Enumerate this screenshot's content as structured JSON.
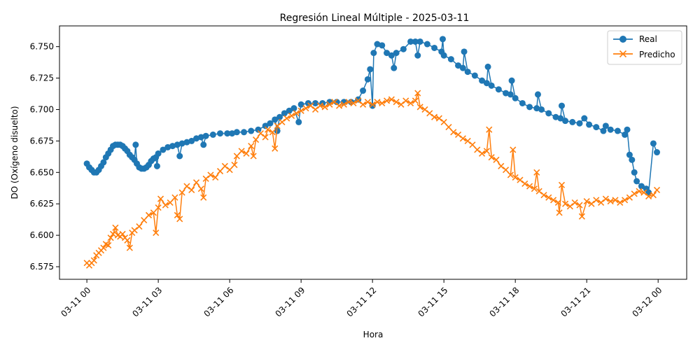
{
  "chart_data": {
    "type": "line",
    "title": "Regresión Lineal Múltiple - 2025-03-11",
    "xlabel": "Hora",
    "ylabel": "DO (Oxígeno disuelto)",
    "x_ticks": [
      {
        "hour": 0,
        "label": "03-11 00"
      },
      {
        "hour": 3,
        "label": "03-11 03"
      },
      {
        "hour": 6,
        "label": "03-11 06"
      },
      {
        "hour": 9,
        "label": "03-11 09"
      },
      {
        "hour": 12,
        "label": "03-11 12"
      },
      {
        "hour": 15,
        "label": "03-11 15"
      },
      {
        "hour": 18,
        "label": "03-11 18"
      },
      {
        "hour": 21,
        "label": "03-11 21"
      },
      {
        "hour": 24,
        "label": "03-12 00"
      }
    ],
    "y_ticks": [
      6.575,
      6.6,
      6.625,
      6.65,
      6.675,
      6.7,
      6.725,
      6.75
    ],
    "y_tick_labels": [
      "6.575",
      "6.600",
      "6.625",
      "6.650",
      "6.675",
      "6.700",
      "6.725",
      "6.750"
    ],
    "xlim_hours": [
      -1.15,
      25.2
    ],
    "ylim": [
      6.565,
      6.7665
    ],
    "grid": false,
    "legend_position": "top-right",
    "series": [
      {
        "name": "Real",
        "color": "#1f77b4",
        "marker": "circle",
        "points": [
          [
            0.0,
            6.657
          ],
          [
            0.1,
            6.654
          ],
          [
            0.2,
            6.652
          ],
          [
            0.3,
            6.65
          ],
          [
            0.4,
            6.65
          ],
          [
            0.5,
            6.652
          ],
          [
            0.6,
            6.655
          ],
          [
            0.7,
            6.658
          ],
          [
            0.8,
            6.662
          ],
          [
            0.9,
            6.665
          ],
          [
            1.0,
            6.668
          ],
          [
            1.1,
            6.671
          ],
          [
            1.2,
            6.672
          ],
          [
            1.3,
            6.672
          ],
          [
            1.4,
            6.672
          ],
          [
            1.5,
            6.671
          ],
          [
            1.6,
            6.669
          ],
          [
            1.7,
            6.667
          ],
          [
            1.8,
            6.664
          ],
          [
            1.9,
            6.662
          ],
          [
            2.0,
            6.66
          ],
          [
            2.05,
            6.672
          ],
          [
            2.1,
            6.657
          ],
          [
            2.2,
            6.654
          ],
          [
            2.3,
            6.653
          ],
          [
            2.4,
            6.653
          ],
          [
            2.5,
            6.654
          ],
          [
            2.6,
            6.656
          ],
          [
            2.7,
            6.659
          ],
          [
            2.8,
            6.661
          ],
          [
            2.9,
            6.662
          ],
          [
            2.95,
            6.655
          ],
          [
            3.0,
            6.665
          ],
          [
            3.2,
            6.668
          ],
          [
            3.4,
            6.67
          ],
          [
            3.6,
            6.671
          ],
          [
            3.8,
            6.672
          ],
          [
            3.9,
            6.663
          ],
          [
            4.0,
            6.673
          ],
          [
            4.2,
            6.674
          ],
          [
            4.4,
            6.675
          ],
          [
            4.6,
            6.677
          ],
          [
            4.8,
            6.678
          ],
          [
            4.9,
            6.672
          ],
          [
            5.0,
            6.679
          ],
          [
            5.3,
            6.68
          ],
          [
            5.6,
            6.681
          ],
          [
            5.9,
            6.681
          ],
          [
            6.1,
            6.681
          ],
          [
            6.3,
            6.682
          ],
          [
            6.6,
            6.682
          ],
          [
            6.9,
            6.683
          ],
          [
            7.2,
            6.684
          ],
          [
            7.5,
            6.687
          ],
          [
            7.7,
            6.689
          ],
          [
            7.9,
            6.692
          ],
          [
            8.0,
            6.683
          ],
          [
            8.1,
            6.694
          ],
          [
            8.3,
            6.697
          ],
          [
            8.5,
            6.699
          ],
          [
            8.7,
            6.701
          ],
          [
            8.9,
            6.69
          ],
          [
            9.0,
            6.704
          ],
          [
            9.3,
            6.705
          ],
          [
            9.6,
            6.705
          ],
          [
            9.9,
            6.705
          ],
          [
            10.2,
            6.706
          ],
          [
            10.5,
            6.706
          ],
          [
            10.8,
            6.706
          ],
          [
            11.1,
            6.706
          ],
          [
            11.4,
            6.708
          ],
          [
            11.6,
            6.715
          ],
          [
            11.8,
            6.724
          ],
          [
            11.9,
            6.732
          ],
          [
            12.0,
            6.703
          ],
          [
            12.05,
            6.745
          ],
          [
            12.2,
            6.752
          ],
          [
            12.4,
            6.751
          ],
          [
            12.6,
            6.745
          ],
          [
            12.8,
            6.743
          ],
          [
            12.9,
            6.733
          ],
          [
            13.0,
            6.745
          ],
          [
            13.3,
            6.748
          ],
          [
            13.6,
            6.754
          ],
          [
            13.8,
            6.754
          ],
          [
            13.9,
            6.743
          ],
          [
            14.0,
            6.754
          ],
          [
            14.3,
            6.752
          ],
          [
            14.6,
            6.749
          ],
          [
            14.9,
            6.746
          ],
          [
            14.95,
            6.756
          ],
          [
            15.0,
            6.743
          ],
          [
            15.3,
            6.74
          ],
          [
            15.6,
            6.735
          ],
          [
            15.8,
            6.733
          ],
          [
            15.85,
            6.746
          ],
          [
            16.0,
            6.73
          ],
          [
            16.3,
            6.727
          ],
          [
            16.6,
            6.723
          ],
          [
            16.8,
            6.721
          ],
          [
            16.85,
            6.734
          ],
          [
            17.0,
            6.719
          ],
          [
            17.3,
            6.716
          ],
          [
            17.6,
            6.713
          ],
          [
            17.8,
            6.712
          ],
          [
            17.85,
            6.723
          ],
          [
            18.0,
            6.709
          ],
          [
            18.3,
            6.705
          ],
          [
            18.6,
            6.702
          ],
          [
            18.9,
            6.701
          ],
          [
            18.95,
            6.712
          ],
          [
            19.1,
            6.7
          ],
          [
            19.4,
            6.697
          ],
          [
            19.7,
            6.694
          ],
          [
            19.9,
            6.693
          ],
          [
            19.95,
            6.703
          ],
          [
            20.1,
            6.691
          ],
          [
            20.4,
            6.69
          ],
          [
            20.7,
            6.689
          ],
          [
            20.9,
            6.693
          ],
          [
            21.1,
            6.688
          ],
          [
            21.4,
            6.686
          ],
          [
            21.7,
            6.683
          ],
          [
            21.8,
            6.687
          ],
          [
            22.0,
            6.684
          ],
          [
            22.3,
            6.683
          ],
          [
            22.6,
            6.68
          ],
          [
            22.7,
            6.684
          ],
          [
            22.8,
            6.664
          ],
          [
            22.9,
            6.66
          ],
          [
            23.0,
            6.65
          ],
          [
            23.1,
            6.643
          ],
          [
            23.3,
            6.639
          ],
          [
            23.5,
            6.637
          ],
          [
            23.6,
            6.634
          ],
          [
            23.8,
            6.673
          ],
          [
            23.95,
            6.666
          ]
        ]
      },
      {
        "name": "Predicho",
        "color": "#ff7f0e",
        "marker": "x",
        "points": [
          [
            0.0,
            6.578
          ],
          [
            0.1,
            6.576
          ],
          [
            0.2,
            6.578
          ],
          [
            0.3,
            6.58
          ],
          [
            0.4,
            6.584
          ],
          [
            0.5,
            6.586
          ],
          [
            0.6,
            6.588
          ],
          [
            0.7,
            6.59
          ],
          [
            0.8,
            6.593
          ],
          [
            0.9,
            6.592
          ],
          [
            1.0,
            6.598
          ],
          [
            1.1,
            6.601
          ],
          [
            1.2,
            6.606
          ],
          [
            1.3,
            6.6
          ],
          [
            1.4,
            6.599
          ],
          [
            1.5,
            6.601
          ],
          [
            1.6,
            6.598
          ],
          [
            1.7,
            6.596
          ],
          [
            1.8,
            6.59
          ],
          [
            1.9,
            6.602
          ],
          [
            2.0,
            6.604
          ],
          [
            2.2,
            6.607
          ],
          [
            2.4,
            6.612
          ],
          [
            2.6,
            6.616
          ],
          [
            2.8,
            6.618
          ],
          [
            2.9,
            6.602
          ],
          [
            3.0,
            6.622
          ],
          [
            3.1,
            6.629
          ],
          [
            3.3,
            6.624
          ],
          [
            3.5,
            6.626
          ],
          [
            3.7,
            6.63
          ],
          [
            3.8,
            6.616
          ],
          [
            3.9,
            6.613
          ],
          [
            4.0,
            6.634
          ],
          [
            4.2,
            6.639
          ],
          [
            4.4,
            6.636
          ],
          [
            4.6,
            6.642
          ],
          [
            4.8,
            6.637
          ],
          [
            4.9,
            6.63
          ],
          [
            5.0,
            6.645
          ],
          [
            5.2,
            6.648
          ],
          [
            5.4,
            6.646
          ],
          [
            5.6,
            6.651
          ],
          [
            5.8,
            6.655
          ],
          [
            6.0,
            6.652
          ],
          [
            6.2,
            6.656
          ],
          [
            6.3,
            6.663
          ],
          [
            6.5,
            6.667
          ],
          [
            6.7,
            6.665
          ],
          [
            6.9,
            6.671
          ],
          [
            7.0,
            6.663
          ],
          [
            7.1,
            6.676
          ],
          [
            7.3,
            6.681
          ],
          [
            7.5,
            6.678
          ],
          [
            7.6,
            6.684
          ],
          [
            7.8,
            6.682
          ],
          [
            7.9,
            6.669
          ],
          [
            8.0,
            6.687
          ],
          [
            8.2,
            6.69
          ],
          [
            8.4,
            6.693
          ],
          [
            8.6,
            6.695
          ],
          [
            8.8,
            6.697
          ],
          [
            9.0,
            6.699
          ],
          [
            9.2,
            6.701
          ],
          [
            9.4,
            6.703
          ],
          [
            9.6,
            6.7
          ],
          [
            9.8,
            6.703
          ],
          [
            10.0,
            6.702
          ],
          [
            10.2,
            6.704
          ],
          [
            10.4,
            6.706
          ],
          [
            10.6,
            6.703
          ],
          [
            10.8,
            6.704
          ],
          [
            11.0,
            6.706
          ],
          [
            11.2,
            6.705
          ],
          [
            11.4,
            6.707
          ],
          [
            11.6,
            6.704
          ],
          [
            11.8,
            6.706
          ],
          [
            12.0,
            6.704
          ],
          [
            12.2,
            6.706
          ],
          [
            12.4,
            6.705
          ],
          [
            12.6,
            6.707
          ],
          [
            12.8,
            6.708
          ],
          [
            13.0,
            6.706
          ],
          [
            13.2,
            6.704
          ],
          [
            13.4,
            6.707
          ],
          [
            13.6,
            6.705
          ],
          [
            13.8,
            6.707
          ],
          [
            13.9,
            6.713
          ],
          [
            14.0,
            6.702
          ],
          [
            14.2,
            6.7
          ],
          [
            14.4,
            6.697
          ],
          [
            14.6,
            6.694
          ],
          [
            14.8,
            6.693
          ],
          [
            15.0,
            6.69
          ],
          [
            15.2,
            6.686
          ],
          [
            15.4,
            6.682
          ],
          [
            15.6,
            6.68
          ],
          [
            15.8,
            6.677
          ],
          [
            16.0,
            6.675
          ],
          [
            16.2,
            6.672
          ],
          [
            16.4,
            6.668
          ],
          [
            16.6,
            6.665
          ],
          [
            16.8,
            6.667
          ],
          [
            16.9,
            6.684
          ],
          [
            17.0,
            6.662
          ],
          [
            17.2,
            6.66
          ],
          [
            17.4,
            6.655
          ],
          [
            17.6,
            6.652
          ],
          [
            17.8,
            6.648
          ],
          [
            17.9,
            6.668
          ],
          [
            18.0,
            6.646
          ],
          [
            18.2,
            6.644
          ],
          [
            18.4,
            6.641
          ],
          [
            18.6,
            6.639
          ],
          [
            18.8,
            6.637
          ],
          [
            18.9,
            6.65
          ],
          [
            19.0,
            6.635
          ],
          [
            19.2,
            6.632
          ],
          [
            19.4,
            6.63
          ],
          [
            19.6,
            6.628
          ],
          [
            19.8,
            6.626
          ],
          [
            19.85,
            6.618
          ],
          [
            19.95,
            6.64
          ],
          [
            20.1,
            6.625
          ],
          [
            20.3,
            6.623
          ],
          [
            20.5,
            6.626
          ],
          [
            20.7,
            6.624
          ],
          [
            20.8,
            6.615
          ],
          [
            21.0,
            6.627
          ],
          [
            21.2,
            6.625
          ],
          [
            21.4,
            6.628
          ],
          [
            21.6,
            6.626
          ],
          [
            21.8,
            6.629
          ],
          [
            22.0,
            6.627
          ],
          [
            22.2,
            6.628
          ],
          [
            22.4,
            6.626
          ],
          [
            22.6,
            6.628
          ],
          [
            22.8,
            6.63
          ],
          [
            23.0,
            6.633
          ],
          [
            23.2,
            6.635
          ],
          [
            23.4,
            6.634
          ],
          [
            23.6,
            6.631
          ],
          [
            23.8,
            6.632
          ],
          [
            23.95,
            6.636
          ]
        ]
      }
    ]
  }
}
